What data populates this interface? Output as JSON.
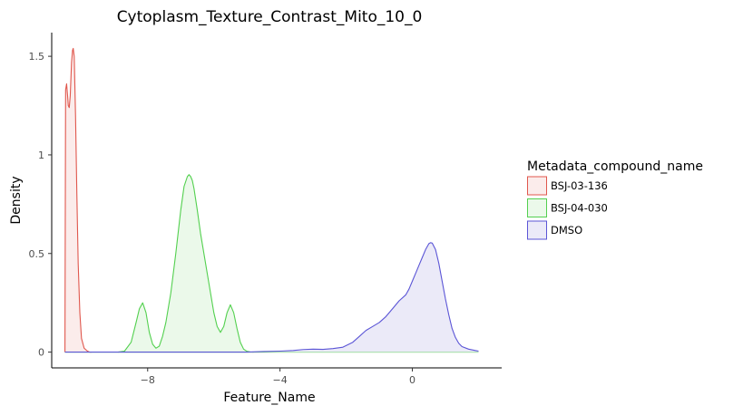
{
  "chart_data": {
    "type": "area",
    "title": "Cytoplasm_Texture_Contrast_Mito_10_0",
    "xlabel": "Feature_Name",
    "ylabel": "Density",
    "xlim": [
      -10.9,
      2.7
    ],
    "ylim": [
      -0.08,
      1.62
    ],
    "x_ticks": [
      -8,
      -4,
      0
    ],
    "x_tick_labels": [
      "−8",
      "−4",
      "0"
    ],
    "y_ticks": [
      0,
      0.5,
      1,
      1.5
    ],
    "y_tick_labels": [
      "0",
      "0.5",
      "1",
      "1.5"
    ],
    "grid": false,
    "legend": {
      "title": "Metadata_compound_name",
      "position": "right"
    },
    "series": [
      {
        "name": "BSJ-03-136",
        "color": "#e0574d",
        "fill": "#fbeceb",
        "x": [
          -10.5,
          -10.48,
          -10.45,
          -10.42,
          -10.4,
          -10.37,
          -10.34,
          -10.3,
          -10.27,
          -10.25,
          -10.22,
          -10.18,
          -10.14,
          -10.1,
          -10.05,
          -10.0,
          -9.92,
          -9.82,
          -9.75,
          -9.7
        ],
        "y": [
          0.0,
          1.33,
          1.36,
          1.3,
          1.25,
          1.24,
          1.3,
          1.47,
          1.53,
          1.54,
          1.5,
          1.2,
          0.8,
          0.45,
          0.2,
          0.07,
          0.02,
          0.005,
          0.0,
          0.0
        ]
      },
      {
        "name": "BSJ-04-030",
        "color": "#53d04f",
        "fill": "#ebf9ea",
        "x": [
          -8.9,
          -8.7,
          -8.5,
          -8.35,
          -8.25,
          -8.15,
          -8.05,
          -7.95,
          -7.85,
          -7.75,
          -7.65,
          -7.55,
          -7.45,
          -7.3,
          -7.15,
          -7.0,
          -6.9,
          -6.8,
          -6.75,
          -6.7,
          -6.65,
          -6.6,
          -6.5,
          -6.4,
          -6.3,
          -6.2,
          -6.1,
          -6.0,
          -5.9,
          -5.8,
          -5.7,
          -5.6,
          -5.5,
          -5.4,
          -5.3,
          -5.2,
          -5.1,
          -5.0,
          -4.9,
          -4.8
        ],
        "y": [
          0.0,
          0.005,
          0.05,
          0.15,
          0.22,
          0.25,
          0.2,
          0.1,
          0.04,
          0.02,
          0.03,
          0.08,
          0.15,
          0.3,
          0.5,
          0.72,
          0.84,
          0.89,
          0.9,
          0.89,
          0.87,
          0.83,
          0.72,
          0.6,
          0.5,
          0.4,
          0.3,
          0.2,
          0.13,
          0.1,
          0.13,
          0.2,
          0.24,
          0.2,
          0.12,
          0.05,
          0.015,
          0.004,
          0.001,
          0.0
        ],
        "baseline_extent": [
          -10.5,
          2.0
        ]
      },
      {
        "name": "DMSO",
        "color": "#5b55d6",
        "fill": "#ebeaf8",
        "x": [
          -10.5,
          -5.0,
          -4.5,
          -4.0,
          -3.6,
          -3.3,
          -3.0,
          -2.7,
          -2.4,
          -2.1,
          -1.8,
          -1.6,
          -1.4,
          -1.2,
          -1.0,
          -0.8,
          -0.6,
          -0.5,
          -0.4,
          -0.2,
          -0.1,
          0.0,
          0.1,
          0.2,
          0.3,
          0.4,
          0.5,
          0.55,
          0.6,
          0.7,
          0.8,
          0.9,
          1.0,
          1.1,
          1.2,
          1.3,
          1.4,
          1.5,
          1.7,
          1.9,
          2.0
        ],
        "y": [
          0.0,
          0.0,
          0.003,
          0.005,
          0.008,
          0.013,
          0.015,
          0.014,
          0.018,
          0.025,
          0.05,
          0.08,
          0.11,
          0.13,
          0.15,
          0.18,
          0.22,
          0.24,
          0.26,
          0.29,
          0.32,
          0.36,
          0.4,
          0.44,
          0.48,
          0.52,
          0.55,
          0.555,
          0.553,
          0.52,
          0.45,
          0.36,
          0.27,
          0.19,
          0.12,
          0.075,
          0.045,
          0.028,
          0.015,
          0.008,
          0.005
        ]
      }
    ]
  }
}
